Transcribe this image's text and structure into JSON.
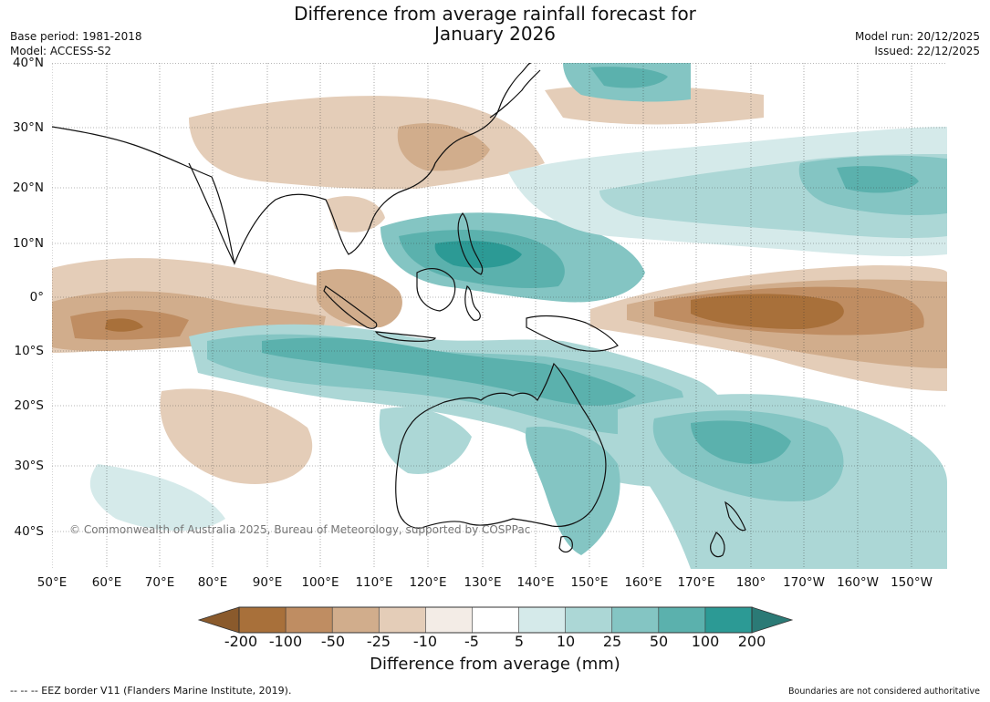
{
  "header": {
    "title_line1": "Difference from average rainfall forecast for",
    "title_line2": "January 2026",
    "base_period": "Base period: 1981-2018",
    "model": "Model: ACCESS-S2",
    "model_run": "Model run: 20/12/2025",
    "issued": "Issued: 22/12/2025"
  },
  "map": {
    "lat_labels": [
      "40°N",
      "30°N",
      "20°N",
      "10°N",
      "0°",
      "10°S",
      "20°S",
      "30°S",
      "40°S"
    ],
    "lon_labels": [
      "50°E",
      "60°E",
      "70°E",
      "80°E",
      "90°E",
      "100°E",
      "110°E",
      "120°E",
      "130°E",
      "140°E",
      "150°E",
      "160°E",
      "170°E",
      "180°",
      "170°W",
      "160°W",
      "150°W"
    ],
    "copyright": "© Commonwealth of Australia 2025, Bureau of Meteorology, supported by COSPPac"
  },
  "colorbar": {
    "labels": [
      "-200",
      "-100",
      "-50",
      "-25",
      "-10",
      "-5",
      "5",
      "10",
      "25",
      "50",
      "100",
      "200"
    ],
    "colors": [
      "#a8703a",
      "#bf8d62",
      "#d1ad8c",
      "#e4cdb8",
      "#f3ece6",
      "#ffffff",
      "#d5eaea",
      "#acd7d6",
      "#84c5c3",
      "#5bb1ad",
      "#2c9a95"
    ],
    "under_color": "#8a5a2c",
    "over_color": "#2b7a76",
    "title": "Difference from average (mm)"
  },
  "footer": {
    "eez_note": "--  --  -- EEZ border V11 (Flanders Marine Institute, 2019).",
    "disclaimer": "Boundaries are not considered authoritative"
  }
}
